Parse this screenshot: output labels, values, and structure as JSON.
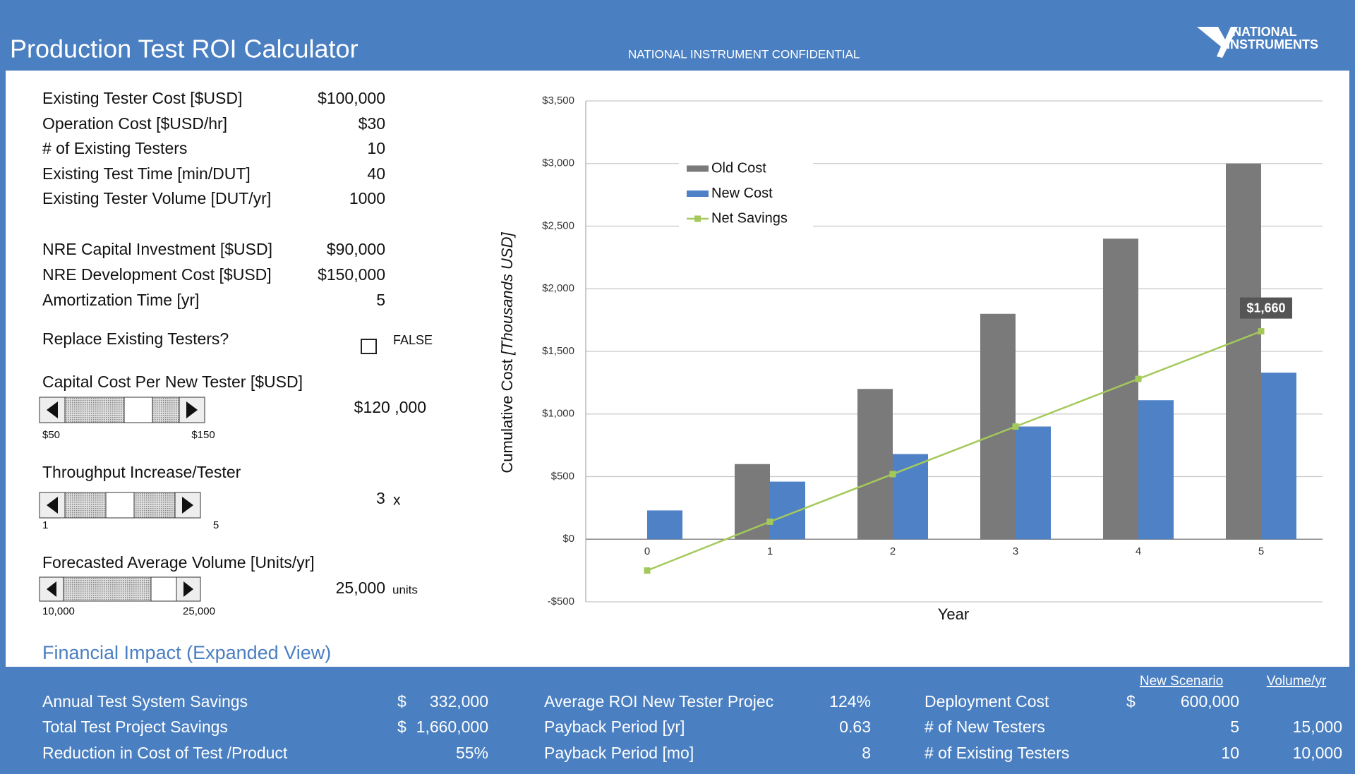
{
  "header": {
    "title": "Production Test ROI Calculator",
    "confidential": "NATIONAL INSTRUMENT CONFIDENTIAL",
    "logo": [
      "NATIONAL",
      "INSTRUMENTS"
    ]
  },
  "inputs": [
    {
      "label": "Existing Tester Cost [$USD]",
      "value": "$100,000"
    },
    {
      "label": "Operation Cost [$USD/hr]",
      "value": "$30"
    },
    {
      "label": "# of Existing Testers",
      "value": "10"
    },
    {
      "label": "Existing Test Time [min/DUT]",
      "value": "40"
    },
    {
      "label": "Existing Tester Volume [DUT/yr]",
      "value": "1000"
    },
    {
      "label": "NRE Capital Investment [$USD]",
      "value": "$90,000"
    },
    {
      "label": "NRE Development Cost [$USD]",
      "value": "$150,000"
    },
    {
      "label": "Amortization Time [yr]",
      "value": "5"
    }
  ],
  "replace": {
    "label": "Replace Existing Testers?",
    "value": "FALSE"
  },
  "sliders": [
    {
      "label": "Capital Cost Per New Tester [$USD]",
      "value": "$120 ,000",
      "min": "$50",
      "max": "$150"
    },
    {
      "label": "Throughput Increase/Tester",
      "value": "3",
      "unit": "x",
      "min": "1",
      "max": "5"
    },
    {
      "label": "Forecasted Average Volume [Units/yr]",
      "value": "25,000",
      "unit": "units",
      "min": "10,000",
      "max": "25,000"
    }
  ],
  "section_title": "Financial Impact (Expanded View)",
  "footer": {
    "headers": [
      "New Scenario",
      "Volume/yr"
    ],
    "savings": [
      {
        "label": "Annual Test System Savings",
        "currency": "$",
        "value": "332,000"
      },
      {
        "label": "Total Test Project Savings",
        "currency": "$",
        "value": "1,660,000"
      },
      {
        "label": "Reduction in Cost of Test /Product",
        "value": "55%"
      }
    ],
    "roi": [
      {
        "label": "Average ROI New Tester Projec",
        "value": "124%"
      },
      {
        "label": "Payback Period [yr]",
        "value": "0.63"
      },
      {
        "label": "Payback Period [mo]",
        "value": "8"
      }
    ],
    "deployment": [
      {
        "label": "Deployment Cost",
        "currency": "$",
        "value": "600,000"
      },
      {
        "label": "# of New Testers",
        "value": "5",
        "volume": "15,000"
      },
      {
        "label": "# of Existing Testers",
        "value": "10",
        "volume": "10,000"
      }
    ]
  },
  "chart_data": {
    "type": "bar",
    "x_label": "Year",
    "y_label": "Cumulative  Cost",
    "y_label_unit": "[Thousands USD]",
    "categories": [
      "0",
      "1",
      "2",
      "3",
      "4",
      "5"
    ],
    "series": [
      {
        "name": "Old Cost",
        "color": "#7a7a7a",
        "values": [
          0,
          600,
          1200,
          1800,
          2400,
          3000
        ]
      },
      {
        "name": "New Cost",
        "color": "#4f81c7",
        "values": [
          230,
          460,
          680,
          900,
          1110,
          1330
        ]
      },
      {
        "name": "Net Savings",
        "color": "#a4c95a",
        "type": "line",
        "values": [
          -250,
          140,
          520,
          900,
          1280,
          1660
        ],
        "value_labels": [
          null,
          null,
          null,
          null,
          null,
          "$1,660"
        ]
      }
    ],
    "ylim": [
      -500,
      3500
    ],
    "yticks": [
      {
        "value": -500,
        "label": "-$500"
      },
      {
        "value": 0,
        "label": "$0"
      },
      {
        "value": 500,
        "label": "$500"
      },
      {
        "value": 1000,
        "label": "$1,000"
      },
      {
        "value": 1500,
        "label": "$1,500"
      },
      {
        "value": 2000,
        "label": "$2,000"
      },
      {
        "value": 2500,
        "label": "$2,500"
      },
      {
        "value": 3000,
        "label": "$3,000"
      },
      {
        "value": 3500,
        "label": "$3,500"
      }
    ],
    "grid": true
  }
}
